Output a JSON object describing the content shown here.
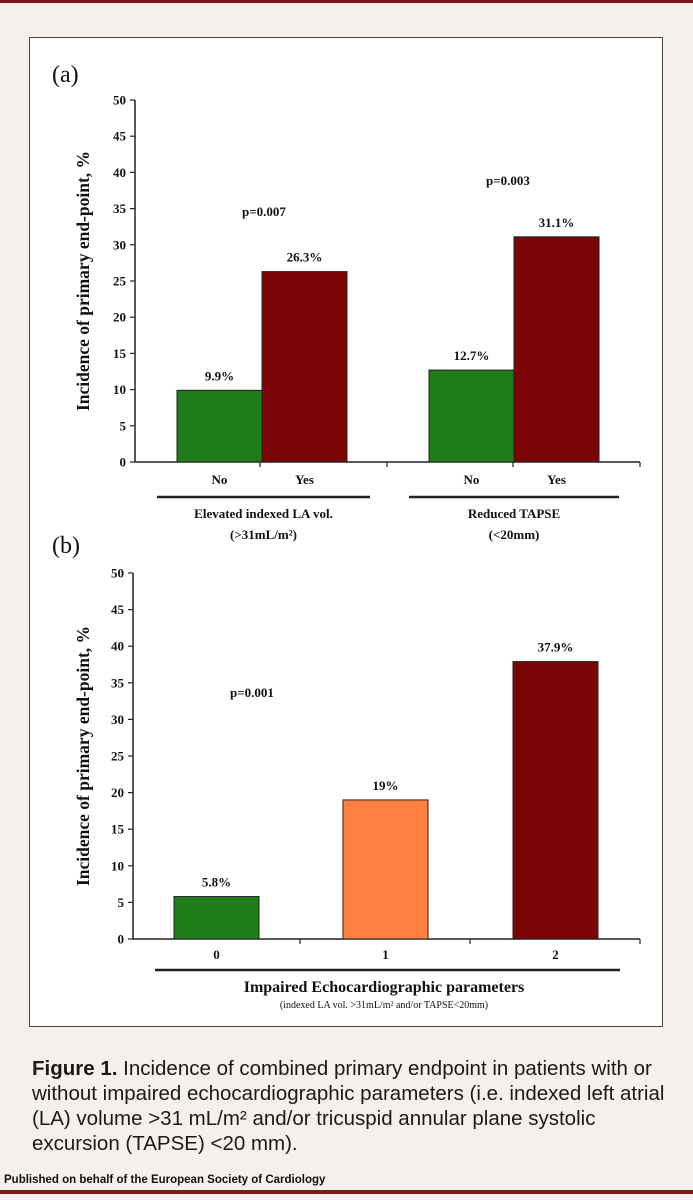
{
  "colors": {
    "no": "#1e7d1a",
    "yes": "#7b0406",
    "mid": "#ff8040",
    "frame": "#7a1a1a"
  },
  "chart_data": [
    {
      "panel": "(a)",
      "type": "bar",
      "ylabel": "Incidence of primary end-point, %",
      "ylim": [
        0,
        50
      ],
      "yticks": [
        0,
        5,
        10,
        15,
        20,
        25,
        30,
        35,
        40,
        45,
        50
      ],
      "groups": [
        {
          "label_line1": "Elevated indexed LA vol.",
          "label_line2": "(>31mL/m²)",
          "p_value": "p=0.007",
          "bars": [
            {
              "category": "No",
              "value": 9.9,
              "label": "9.9%",
              "color_key": "no"
            },
            {
              "category": "Yes",
              "value": 26.3,
              "label": "26.3%",
              "color_key": "yes"
            }
          ]
        },
        {
          "label_line1": "Reduced TAPSE",
          "label_line2": "(<20mm)",
          "p_value": "p=0.003",
          "bars": [
            {
              "category": "No",
              "value": 12.7,
              "label": "12.7%",
              "color_key": "no"
            },
            {
              "category": "Yes",
              "value": 31.1,
              "label": "31.1%",
              "color_key": "yes"
            }
          ]
        }
      ]
    },
    {
      "panel": "(b)",
      "type": "bar",
      "ylabel": "Incidence of primary end-point, %",
      "ylim": [
        0,
        50
      ],
      "yticks": [
        0,
        5,
        10,
        15,
        20,
        25,
        30,
        35,
        40,
        45,
        50
      ],
      "p_value": "p=0.001",
      "xlabel": "Impaired Echocardiographic parameters",
      "xlabel_sub": "(indexed LA vol. >31mL/m² and/or TAPSE<20mm)",
      "categories": [
        "0",
        "1",
        "2"
      ],
      "values": [
        5.8,
        19,
        37.9
      ],
      "labels": [
        "5.8%",
        "19%",
        "37.9%"
      ],
      "color_keys": [
        "no",
        "mid",
        "yes"
      ]
    }
  ],
  "caption": {
    "lead": "Figure 1.",
    "text": " Incidence of combined primary endpoint in patients with or without impaired echocardiographic parameters (i.e. indexed left atrial (LA) volume >31 mL/m² and/or tricuspid annular plane systolic excursion (TAPSE) <20 mm)."
  },
  "footer": "Published on behalf of the European Society of Cardiology"
}
